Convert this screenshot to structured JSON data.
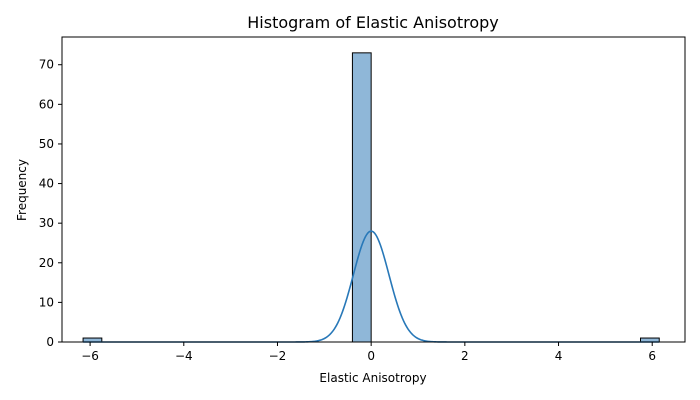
{
  "chart_data": {
    "type": "bar",
    "title": "Histogram of Elastic Anisotropy",
    "xlabel": "Elastic Anisotropy",
    "ylabel": "Frequency",
    "xlim": [
      -6.6,
      6.7
    ],
    "ylim": [
      0,
      77
    ],
    "xticks": [
      -6,
      -4,
      -2,
      0,
      2,
      4,
      6
    ],
    "xtick_labels": [
      "−6",
      "−4",
      "−2",
      "0",
      "2",
      "4",
      "6"
    ],
    "yticks": [
      0,
      10,
      20,
      30,
      40,
      50,
      60,
      70
    ],
    "ytick_labels": [
      "0",
      "10",
      "20",
      "30",
      "40",
      "50",
      "60",
      "70"
    ],
    "bars": [
      {
        "x_start": -6.15,
        "x_end": -5.75,
        "value": 1
      },
      {
        "x_start": -0.4,
        "x_end": 0.0,
        "value": 73
      },
      {
        "x_start": 5.75,
        "x_end": 6.15,
        "value": 1
      }
    ],
    "kde": {
      "mean": 0,
      "std": 0.38,
      "peak": 28,
      "x_range": [
        -6.15,
        6.15
      ]
    },
    "grid": false,
    "legend": false,
    "colors": {
      "bar_fill": "#8fb7d8",
      "bar_edge": "#000000",
      "kde_line": "#2878b8",
      "axes": "#000000"
    }
  }
}
